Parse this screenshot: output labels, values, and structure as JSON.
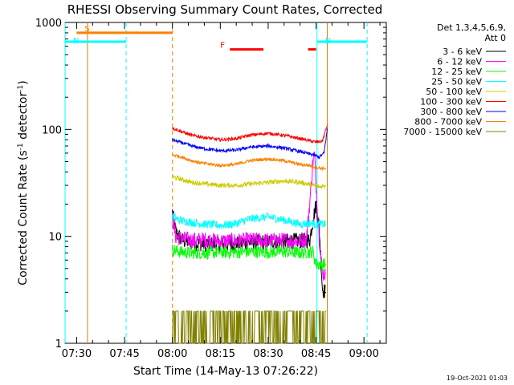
{
  "chart_data": {
    "type": "line",
    "title": "RHESSI Observing Summary Count Rates, Corrected",
    "xlabel": "Start Time (14-May-13 07:26:22)",
    "ylabel_parts": [
      "Corrected Count Rate (s",
      "-1",
      " detector",
      "-1",
      ")"
    ],
    "y_scale": "log",
    "ylim": [
      1,
      1000
    ],
    "xlim": [
      "07:26:22",
      "09:07:00"
    ],
    "x_tick_labels": [
      "07:30",
      "07:45",
      "08:00",
      "08:15",
      "08:30",
      "08:45",
      "09:00"
    ],
    "x_tick_minutes": [
      30,
      45,
      60,
      75,
      90,
      105,
      120
    ],
    "y_tick_labels": [
      "1",
      "10",
      "100",
      "1000"
    ],
    "y_tick_values": [
      1,
      10,
      100,
      1000
    ],
    "legend_header": [
      "Det 1,3,4,5,6,9,",
      "Att 0"
    ],
    "legend_placement": "right",
    "series": [
      {
        "name": "3 - 6 keV",
        "color": "#000000",
        "x": [
          60,
          61,
          63,
          66,
          70,
          75,
          80,
          85,
          90,
          95,
          100,
          103,
          104,
          105,
          106,
          107,
          108
        ],
        "values": [
          17,
          11,
          9.2,
          8.7,
          8.5,
          8.4,
          8.6,
          8.8,
          8.9,
          9.0,
          9.1,
          9.2,
          14,
          20,
          12,
          3.2,
          3
        ]
      },
      {
        "name": "6 - 12 keV",
        "color": "#ff00ff",
        "x": [
          60,
          61,
          63,
          66,
          70,
          75,
          80,
          85,
          90,
          95,
          100,
          102,
          103,
          104,
          104.5,
          105,
          106,
          107,
          108
        ],
        "values": [
          15,
          10,
          9.5,
          9.2,
          9.3,
          9.0,
          9.1,
          9.2,
          9.1,
          9.2,
          9.0,
          9.5,
          20,
          50,
          60,
          30,
          10,
          4.5,
          4.5
        ]
      },
      {
        "name": "12 - 25 keV",
        "color": "#00ff00",
        "x": [
          60,
          63,
          66,
          70,
          75,
          80,
          85,
          90,
          95,
          100,
          104,
          105,
          108
        ],
        "values": [
          7.5,
          7.1,
          7.0,
          7.0,
          7.1,
          7.1,
          7.2,
          7.1,
          7.2,
          7.0,
          7.2,
          5.5,
          5.5
        ]
      },
      {
        "name": "25 - 50 keV",
        "color": "#00ffff",
        "x": [
          60,
          62,
          66,
          70,
          75,
          78,
          80,
          84,
          90,
          95,
          100,
          103,
          105,
          108
        ],
        "values": [
          15.5,
          14.2,
          13.5,
          13.0,
          12.7,
          12.9,
          13.2,
          14.5,
          15.2,
          14.2,
          13.0,
          13.3,
          13.0,
          13.0
        ]
      },
      {
        "name": "50 - 100 keV",
        "color": "#cccc00",
        "x": [
          60,
          63,
          66,
          70,
          75,
          80,
          85,
          90,
          95,
          100,
          104,
          106,
          108
        ],
        "values": [
          36,
          34,
          32,
          31,
          30,
          30,
          31,
          32,
          33,
          32,
          30,
          29,
          30
        ]
      },
      {
        "name": "100 - 300 keV",
        "color": "#ff0000",
        "x": [
          60,
          63,
          66,
          70,
          75,
          80,
          84,
          90,
          95,
          100,
          105,
          107,
          108.5
        ],
        "values": [
          103,
          95,
          88,
          84,
          80,
          82,
          88,
          92,
          88,
          82,
          76,
          78,
          110
        ]
      },
      {
        "name": "300 - 800 keV",
        "color": "#0000ff",
        "x": [
          60,
          63,
          66,
          70,
          75,
          80,
          84,
          90,
          95,
          100,
          104,
          106,
          107.5,
          108.5
        ],
        "values": [
          80,
          75,
          70,
          66,
          63,
          64,
          68,
          70,
          67,
          62,
          58,
          55,
          60,
          100
        ]
      },
      {
        "name": "800 - 7000 keV",
        "color": "#ff8000",
        "x": [
          60,
          63,
          66,
          70,
          75,
          80,
          84,
          90,
          95,
          100,
          103,
          105,
          108
        ],
        "values": [
          58,
          55,
          51,
          48,
          46,
          47,
          51,
          53,
          51,
          47,
          46,
          44,
          43
        ]
      },
      {
        "name": "7000 - 15000 keV",
        "color": "#808000",
        "x": [
          60,
          70,
          80,
          90,
          100,
          108
        ],
        "values": [
          2,
          2,
          2,
          2,
          2,
          2
        ]
      }
    ],
    "flags": [
      {
        "label": "S",
        "color": "#ff8000",
        "x_start": 30,
        "x_end": 60,
        "value": 800
      },
      {
        "label": "N",
        "color": "#00ffff",
        "x_start": 26.37,
        "x_end": 45.5,
        "value": 660
      },
      {
        "label": "N",
        "color": "#00ffff",
        "x_start": 105.3,
        "x_end": 121,
        "value": 660
      },
      {
        "label": "F",
        "color": "#ff0000",
        "x_start": 78,
        "x_end": 88.5,
        "value": 560
      },
      {
        "label": "",
        "color": "#ff0000",
        "x_start": 102.5,
        "x_end": 105,
        "value": 560
      }
    ],
    "vertical_lines": [
      {
        "x": 26.37,
        "color": "#00ffff",
        "style": "solid"
      },
      {
        "x": 33.4,
        "color": "#cc8800",
        "style": "solid"
      },
      {
        "x": 45.5,
        "color": "#00ffff",
        "style": "dashed"
      },
      {
        "x": 60,
        "color": "#ff8000",
        "style": "dashed"
      },
      {
        "x": 105.3,
        "color": "#00ffff",
        "style": "solid"
      },
      {
        "x": 108.5,
        "color": "#cc8800",
        "style": "solid"
      },
      {
        "x": 121,
        "color": "#00ffff",
        "style": "dashed"
      }
    ]
  },
  "footer": {
    "timestamp": "19-Oct-2021 01:03"
  }
}
